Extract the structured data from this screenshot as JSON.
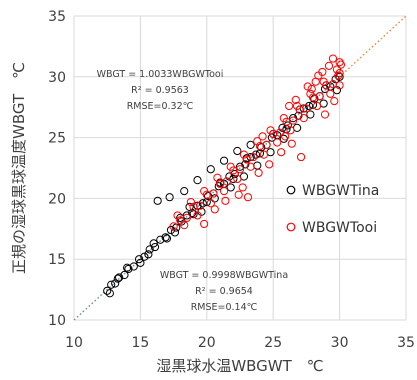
{
  "chart_data": {
    "type": "scatter",
    "x_axis": {
      "label": "湿黒球水温WBGWT　℃",
      "range": [
        10,
        35
      ],
      "ticks": [
        "10",
        "15",
        "20",
        "25",
        "30",
        "35"
      ]
    },
    "y_axis": {
      "label": "正規の湿球黒球温度WBGT　℃",
      "range": [
        10,
        35
      ],
      "ticks": [
        "10",
        "15",
        "20",
        "25",
        "30",
        "35"
      ]
    },
    "grid": true,
    "legend_position": "right",
    "series": [
      {
        "name": "WBGWTina",
        "color": "#000000",
        "marker": "open-circle",
        "fit": {
          "slope": 0.9998,
          "r2": 0.9654,
          "rmse": "0.14"
        },
        "points": [
          [
            12.5,
            12.4
          ],
          [
            12.8,
            12.9
          ],
          [
            13.1,
            13.0
          ],
          [
            13.4,
            13.5
          ],
          [
            13.8,
            13.7
          ],
          [
            14.1,
            14.2
          ],
          [
            14.5,
            14.4
          ],
          [
            14.9,
            15.0
          ],
          [
            15.3,
            15.2
          ],
          [
            15.7,
            15.8
          ],
          [
            16.1,
            16.0
          ],
          [
            16.5,
            16.6
          ],
          [
            16.9,
            16.8
          ],
          [
            17.3,
            17.4
          ],
          [
            17.7,
            17.6
          ],
          [
            18.1,
            18.1
          ],
          [
            18.5,
            18.6
          ],
          [
            18.9,
            18.8
          ],
          [
            19.3,
            19.4
          ],
          [
            19.7,
            19.6
          ],
          [
            20.1,
            20.2
          ],
          [
            20.5,
            20.4
          ],
          [
            20.9,
            21.0
          ],
          [
            21.3,
            21.2
          ],
          [
            21.7,
            21.8
          ],
          [
            22.1,
            22.0
          ],
          [
            22.5,
            22.6
          ],
          [
            22.9,
            22.8
          ],
          [
            23.3,
            23.4
          ],
          [
            23.7,
            23.6
          ],
          [
            24.1,
            24.2
          ],
          [
            24.5,
            24.4
          ],
          [
            24.9,
            25.0
          ],
          [
            25.3,
            25.2
          ],
          [
            25.7,
            25.8
          ],
          [
            26.1,
            26.0
          ],
          [
            26.5,
            26.6
          ],
          [
            26.9,
            26.8
          ],
          [
            27.3,
            27.4
          ],
          [
            27.7,
            27.6
          ],
          [
            28.1,
            28.2
          ],
          [
            28.5,
            28.4
          ],
          [
            28.9,
            29.0
          ],
          [
            29.3,
            29.2
          ],
          [
            29.7,
            29.8
          ],
          [
            30.0,
            30.0
          ],
          [
            12.7,
            12.2
          ],
          [
            13.3,
            13.4
          ],
          [
            14.0,
            14.3
          ],
          [
            15.0,
            14.7
          ],
          [
            16.0,
            16.3
          ],
          [
            17.0,
            16.7
          ],
          [
            18.0,
            18.4
          ],
          [
            19.0,
            18.7
          ],
          [
            20.0,
            19.7
          ],
          [
            21.0,
            21.3
          ],
          [
            22.0,
            21.6
          ],
          [
            23.0,
            23.3
          ],
          [
            24.0,
            23.7
          ],
          [
            25.0,
            25.3
          ],
          [
            26.0,
            25.7
          ],
          [
            27.0,
            27.3
          ],
          [
            28.0,
            27.7
          ],
          [
            29.0,
            29.3
          ],
          [
            16.3,
            19.8
          ],
          [
            17.2,
            20.1
          ],
          [
            18.3,
            20.6
          ],
          [
            19.3,
            21.5
          ],
          [
            20.3,
            22.4
          ],
          [
            21.3,
            23.1
          ],
          [
            22.3,
            23.9
          ],
          [
            23.3,
            24.4
          ],
          [
            21.8,
            20.9
          ],
          [
            22.8,
            21.8
          ],
          [
            23.8,
            22.7
          ],
          [
            24.8,
            23.8
          ],
          [
            25.8,
            24.9
          ],
          [
            26.8,
            25.8
          ],
          [
            27.8,
            26.9
          ],
          [
            28.8,
            27.8
          ],
          [
            29.8,
            28.9
          ],
          [
            19.6,
            18.9
          ],
          [
            20.6,
            20.0
          ],
          [
            18.7,
            19.3
          ],
          [
            17.6,
            17.2
          ],
          [
            15.6,
            15.4
          ]
        ]
      },
      {
        "name": "WBGWTooi",
        "color": "#ff0000",
        "marker": "open-circle",
        "fit": {
          "slope": 1.0033,
          "r2": 0.9563,
          "rmse": "0.32"
        },
        "points": [
          [
            17.5,
            17.7
          ],
          [
            18.0,
            18.2
          ],
          [
            18.5,
            18.4
          ],
          [
            19.0,
            19.3
          ],
          [
            19.5,
            19.4
          ],
          [
            20.0,
            20.3
          ],
          [
            20.5,
            20.4
          ],
          [
            21.0,
            21.2
          ],
          [
            21.5,
            21.4
          ],
          [
            22.0,
            22.3
          ],
          [
            22.5,
            22.4
          ],
          [
            23.0,
            23.2
          ],
          [
            23.5,
            23.4
          ],
          [
            24.0,
            24.3
          ],
          [
            24.5,
            24.4
          ],
          [
            25.0,
            25.3
          ],
          [
            25.5,
            25.4
          ],
          [
            26.0,
            26.3
          ],
          [
            26.5,
            26.4
          ],
          [
            27.0,
            27.3
          ],
          [
            27.5,
            27.4
          ],
          [
            28.0,
            28.3
          ],
          [
            28.5,
            28.4
          ],
          [
            29.0,
            29.3
          ],
          [
            29.5,
            29.4
          ],
          [
            30.0,
            30.3
          ],
          [
            17.8,
            18.6
          ],
          [
            18.8,
            19.7
          ],
          [
            19.8,
            20.6
          ],
          [
            20.8,
            21.7
          ],
          [
            21.8,
            22.6
          ],
          [
            22.8,
            23.6
          ],
          [
            23.8,
            24.7
          ],
          [
            24.8,
            25.6
          ],
          [
            25.8,
            26.6
          ],
          [
            26.8,
            27.6
          ],
          [
            27.8,
            28.6
          ],
          [
            28.8,
            29.6
          ],
          [
            29.8,
            30.6
          ],
          [
            30.0,
            31.2
          ],
          [
            29.2,
            30.9
          ],
          [
            28.4,
            30.1
          ],
          [
            18.3,
            17.8
          ],
          [
            19.3,
            18.6
          ],
          [
            20.3,
            19.6
          ],
          [
            21.3,
            20.6
          ],
          [
            22.3,
            21.6
          ],
          [
            23.3,
            22.6
          ],
          [
            24.3,
            23.6
          ],
          [
            25.3,
            24.6
          ],
          [
            26.3,
            25.6
          ],
          [
            27.3,
            26.6
          ],
          [
            28.3,
            27.6
          ],
          [
            29.3,
            28.6
          ],
          [
            30.0,
            29.3
          ],
          [
            29.6,
            28.0
          ],
          [
            28.9,
            26.9
          ],
          [
            27.1,
            23.4
          ],
          [
            26.4,
            24.5
          ],
          [
            25.6,
            23.8
          ],
          [
            24.7,
            22.8
          ],
          [
            23.9,
            22.1
          ],
          [
            22.7,
            20.9
          ],
          [
            21.4,
            19.8
          ],
          [
            20.6,
            19.1
          ],
          [
            19.8,
            17.9
          ],
          [
            23.1,
            20.1
          ],
          [
            22.4,
            20.3
          ],
          [
            25.9,
            25.1
          ],
          [
            24.2,
            25.1
          ],
          [
            27.6,
            29.2
          ],
          [
            28.7,
            30.4
          ],
          [
            26.2,
            27.6
          ],
          [
            29.5,
            31.5
          ],
          [
            30.1,
            31.0
          ],
          [
            29.9,
            30.1
          ],
          [
            28.2,
            29.6
          ],
          [
            27.9,
            29.0
          ],
          [
            26.7,
            28.1
          ]
        ]
      }
    ],
    "reference_line": {
      "from": [
        10,
        10
      ],
      "to": [
        35,
        35
      ],
      "color": "#ed7d31",
      "style": "dotted"
    },
    "fit_line": {
      "from": [
        10,
        10
      ],
      "to": [
        30,
        30
      ],
      "color": "#5b9bd5",
      "style": "dotted"
    },
    "annotations": [
      {
        "id": "ooi",
        "lines": [
          "WBGT = 1.0033WBGWTooi",
          "R² = 0.9563",
          "RMSE=0.32℃"
        ]
      },
      {
        "id": "ina",
        "lines": [
          "WBGT = 0.9998WBGWTina",
          "R² = 0.9654",
          "RMSE=0.14℃"
        ]
      }
    ]
  }
}
